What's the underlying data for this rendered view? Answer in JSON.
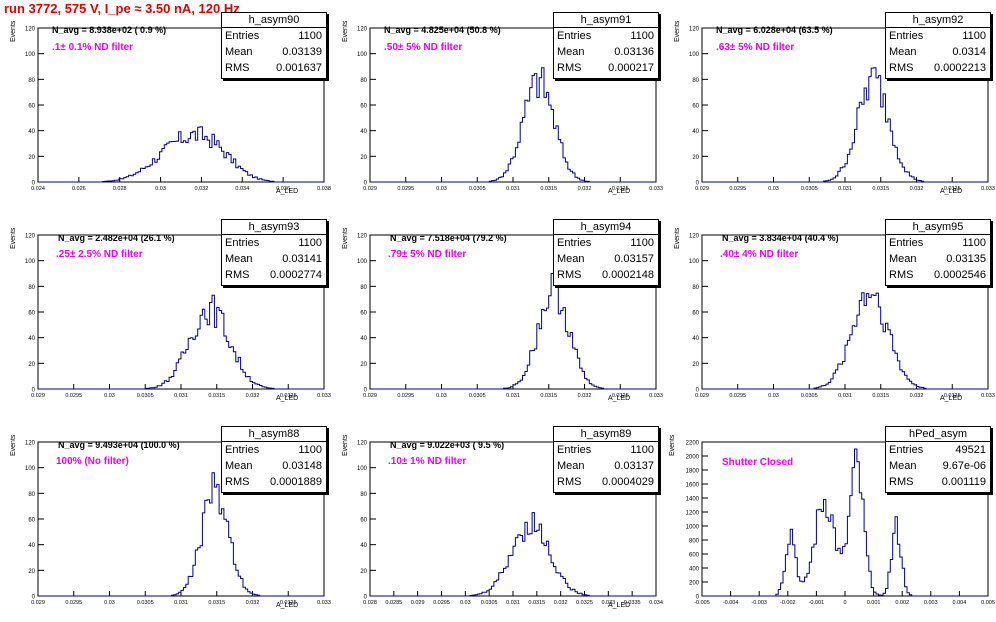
{
  "page_title": "run 3772,   575 V, I_pe ≈ 3.50 nA, 120 Hz",
  "chart_data": [
    {
      "type": "bar",
      "name": "h_asym90",
      "annotation": "N_avg = 8.938e+02 ( 0.9 %)",
      "filter_label": ".1± 0.1% ND filter",
      "stats": {
        "Entries": "1100",
        "Mean": "0.03139",
        "RMS": "0.001637"
      },
      "xlabel": "A_LED",
      "ylabel": "Events",
      "xlim": [
        0.024,
        0.038
      ],
      "ylim": [
        0,
        120
      ],
      "xticks": [
        "0.024",
        "0.026",
        "0.028",
        "0.03",
        "0.032",
        "0.034",
        "0.036",
        "0.038"
      ],
      "yticks": [
        "0",
        "20",
        "40",
        "60",
        "80",
        "100",
        "120"
      ],
      "peaks": [
        {
          "center": 0.0309,
          "width": 0.0013,
          "height": 32
        },
        {
          "center": 0.0325,
          "width": 0.0011,
          "height": 26
        }
      ],
      "peak_value": 43
    },
    {
      "type": "bar",
      "name": "h_asym91",
      "annotation": "N_avg = 4.825e+04 (50.8 %)",
      "filter_label": ".50± 5% ND filter",
      "stats": {
        "Entries": "1100",
        "Mean": "0.03136",
        "RMS": "0.000217"
      },
      "xlabel": "A_LED",
      "ylabel": "Events",
      "xlim": [
        0.029,
        0.033
      ],
      "ylim": [
        0,
        120
      ],
      "xticks": [
        "0.029",
        "0.0295",
        "0.03",
        "0.0305",
        "0.031",
        "0.0315",
        "0.032",
        "0.0325",
        "0.033"
      ],
      "yticks": [
        "0",
        "20",
        "40",
        "60",
        "80",
        "100",
        "120"
      ],
      "peaks": [
        {
          "center": 0.03136,
          "width": 0.000217,
          "height": 80
        }
      ],
      "peak_value": 89
    },
    {
      "type": "bar",
      "name": "h_asym92",
      "annotation": "N_avg = 6.028e+04 (63.5 %)",
      "filter_label": ".63± 5% ND filter",
      "stats": {
        "Entries": "1100",
        "Mean": "0.0314",
        "RMS": "0.0002213"
      },
      "xlabel": "A_LED",
      "ylabel": "Events",
      "xlim": [
        0.029,
        0.033
      ],
      "ylim": [
        0,
        120
      ],
      "xticks": [
        "0.029",
        "0.0295",
        "0.03",
        "0.0305",
        "0.031",
        "0.0315",
        "0.032",
        "0.0325",
        "0.033"
      ],
      "yticks": [
        "0",
        "20",
        "40",
        "60",
        "80",
        "100",
        "120"
      ],
      "peaks": [
        {
          "center": 0.0314,
          "width": 0.00022,
          "height": 78
        }
      ],
      "peak_value": 89
    },
    {
      "type": "bar",
      "name": "h_asym93",
      "annotation": "N_avg = 2.482e+04 (26.1 %)",
      "filter_label": ".25± 2.5% ND filter",
      "stats": {
        "Entries": "1100",
        "Mean": "0.03141",
        "RMS": "0.0002774"
      },
      "xlabel": "A_LED",
      "ylabel": "Events",
      "xlim": [
        0.029,
        0.033
      ],
      "ylim": [
        0,
        120
      ],
      "xticks": [
        "0.029",
        "0.0295",
        "0.03",
        "0.0305",
        "0.031",
        "0.0315",
        "0.032",
        "0.0325",
        "0.033"
      ],
      "yticks": [
        "0",
        "20",
        "40",
        "60",
        "80",
        "100",
        "120"
      ],
      "peaks": [
        {
          "center": 0.0314,
          "width": 0.00028,
          "height": 65
        }
      ],
      "peak_value": 73
    },
    {
      "type": "bar",
      "name": "h_asym94",
      "annotation": "N_avg = 7.518e+04 (79.2 %)",
      "filter_label": ".79± 5% ND filter",
      "stats": {
        "Entries": "1100",
        "Mean": "0.03157",
        "RMS": "0.0002148"
      },
      "xlabel": "A_LED",
      "ylabel": "Events",
      "xlim": [
        0.029,
        0.033
      ],
      "ylim": [
        0,
        120
      ],
      "xticks": [
        "0.029",
        "0.0295",
        "0.03",
        "0.0305",
        "0.031",
        "0.0315",
        "0.032",
        "0.0325",
        "0.033"
      ],
      "yticks": [
        "0",
        "20",
        "40",
        "60",
        "80",
        "100",
        "120"
      ],
      "peaks": [
        {
          "center": 0.03157,
          "width": 0.000215,
          "height": 82
        }
      ],
      "peak_value": 90
    },
    {
      "type": "bar",
      "name": "h_asym95",
      "annotation": "N_avg = 3.834e+04 (40.4 %)",
      "filter_label": ".40± 4% ND filter",
      "stats": {
        "Entries": "1100",
        "Mean": "0.03135",
        "RMS": "0.0002546"
      },
      "xlabel": "A_LED",
      "ylabel": "Events",
      "xlim": [
        0.029,
        0.033
      ],
      "ylim": [
        0,
        120
      ],
      "xticks": [
        "0.029",
        "0.0295",
        "0.03",
        "0.0305",
        "0.031",
        "0.0315",
        "0.032",
        "0.0325",
        "0.033"
      ],
      "yticks": [
        "0",
        "20",
        "40",
        "60",
        "80",
        "100",
        "120"
      ],
      "peaks": [
        {
          "center": 0.03135,
          "width": 0.00025,
          "height": 68
        }
      ],
      "peak_value": 75
    },
    {
      "type": "bar",
      "name": "h_asym88",
      "annotation": "N_avg = 9.493e+04 (100.0 %)",
      "filter_label": "100% (No filter)",
      "stats": {
        "Entries": "1100",
        "Mean": "0.03148",
        "RMS": "0.0001889"
      },
      "xlabel": "A_LED",
      "ylabel": "Events",
      "xlim": [
        0.029,
        0.033
      ],
      "ylim": [
        0,
        120
      ],
      "xticks": [
        "0.029",
        "0.0295",
        "0.03",
        "0.0305",
        "0.031",
        "0.0315",
        "0.032",
        "0.0325",
        "0.033"
      ],
      "yticks": [
        "0",
        "20",
        "40",
        "60",
        "80",
        "100",
        "120"
      ],
      "peaks": [
        {
          "center": 0.03148,
          "width": 0.00019,
          "height": 88
        }
      ],
      "peak_value": 96
    },
    {
      "type": "bar",
      "name": "h_asym89",
      "annotation": "N_avg = 9.022e+03 ( 9.5 %)",
      "filter_label": ".10± 1% ND filter",
      "stats": {
        "Entries": "1100",
        "Mean": "0.03137",
        "RMS": "0.0004029"
      },
      "xlabel": "A_LED",
      "ylabel": "Events",
      "xlim": [
        0.028,
        0.034
      ],
      "ylim": [
        0,
        120
      ],
      "xticks": [
        "0.028",
        "0.0285",
        "0.029",
        "0.0295",
        "0.03",
        "0.0305",
        "0.031",
        "0.0315",
        "0.032",
        "0.0325",
        "0.033",
        "0.0335",
        "0.034"
      ],
      "yticks": [
        "0",
        "20",
        "40",
        "60",
        "80",
        "100",
        "120"
      ],
      "peaks": [
        {
          "center": 0.03137,
          "width": 0.0004,
          "height": 58
        }
      ],
      "peak_value": 65
    },
    {
      "type": "bar",
      "name": "hPed_asym",
      "annotation": "",
      "filter_label": "Shutter Closed",
      "stats": {
        "Entries": "49521",
        "Mean": "9.67e-06",
        "RMS": "0.001119"
      },
      "xlabel": "",
      "ylabel": "Events",
      "xlim": [
        -0.005,
        0.005
      ],
      "ylim": [
        0,
        2200
      ],
      "xticks": [
        "-0.005",
        "-0.004",
        "-0.003",
        "-0.002",
        "-0.001",
        "0",
        "0.001",
        "0.002",
        "0.003",
        "0.004",
        "0.005"
      ],
      "yticks": [
        "0",
        "200",
        "400",
        "600",
        "800",
        "1000",
        "1200",
        "1400",
        "1600",
        "1800",
        "2000",
        "2200"
      ],
      "peaks": [
        {
          "center": -0.0019,
          "width": 0.00018,
          "height": 1000
        },
        {
          "center": -0.0007,
          "width": 0.00035,
          "height": 1500
        },
        {
          "center": 0.0004,
          "width": 0.00025,
          "height": 1950
        },
        {
          "center": 0.0018,
          "width": 0.00017,
          "height": 1050
        }
      ],
      "peak_value": 2100
    }
  ]
}
